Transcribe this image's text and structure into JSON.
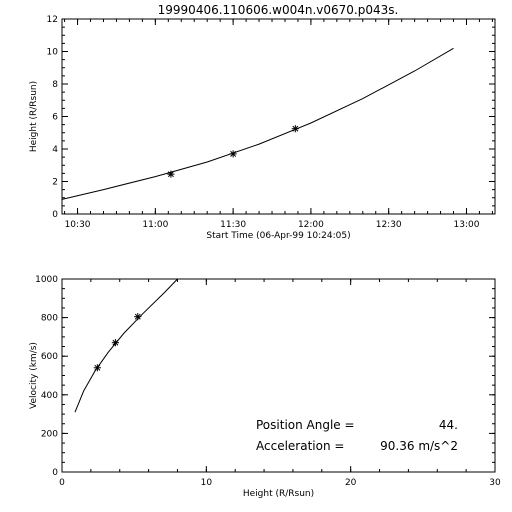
{
  "title": "19990406.110606.w004n.v0670.p043s.",
  "chart_data": [
    {
      "type": "line",
      "xlabel": "Start Time (06-Apr-99 10:24:05)",
      "ylabel": "Height (R/Rsun)",
      "x_unit": "time",
      "xlim": [
        "10:24",
        "13:11"
      ],
      "ylim": [
        0,
        12
      ],
      "xticks": [
        "10:30",
        "11:00",
        "11:30",
        "12:00",
        "12:30",
        "13:00"
      ],
      "yticks": [
        0,
        2,
        4,
        6,
        8,
        10,
        12
      ],
      "grid": false,
      "series": [
        {
          "style": "line",
          "x": [
            "10:24",
            "10:40",
            "11:00",
            "11:20",
            "11:40",
            "12:00",
            "12:20",
            "12:40",
            "12:55"
          ],
          "y": [
            0.9,
            1.5,
            2.3,
            3.2,
            4.3,
            5.6,
            7.1,
            8.8,
            10.2
          ]
        },
        {
          "style": "markers",
          "marker": "asterisk",
          "x": [
            "11:06",
            "11:30",
            "11:54"
          ],
          "y": [
            2.45,
            3.7,
            5.25
          ]
        }
      ]
    },
    {
      "type": "line",
      "xlabel": "Height (R/Rsun)",
      "ylabel": "Velocity (km/s)",
      "xlim": [
        0,
        30
      ],
      "ylim": [
        0,
        1000
      ],
      "xticks": [
        0,
        10,
        20,
        30
      ],
      "yticks": [
        0,
        200,
        400,
        600,
        800,
        1000
      ],
      "grid": false,
      "series": [
        {
          "style": "line",
          "x": [
            0.9,
            1.5,
            2.3,
            3.2,
            4.3,
            5.6,
            7.1,
            8.0
          ],
          "y": [
            310,
            420,
            525,
            620,
            720,
            820,
            930,
            1000
          ]
        },
        {
          "style": "markers",
          "marker": "asterisk",
          "x": [
            2.45,
            3.7,
            5.25
          ],
          "y": [
            540,
            670,
            805
          ]
        }
      ],
      "annotations": [
        {
          "label": "Position Angle =",
          "value": "44."
        },
        {
          "label": "Acceleration =",
          "value": "90.36 m/s^2"
        }
      ]
    }
  ]
}
